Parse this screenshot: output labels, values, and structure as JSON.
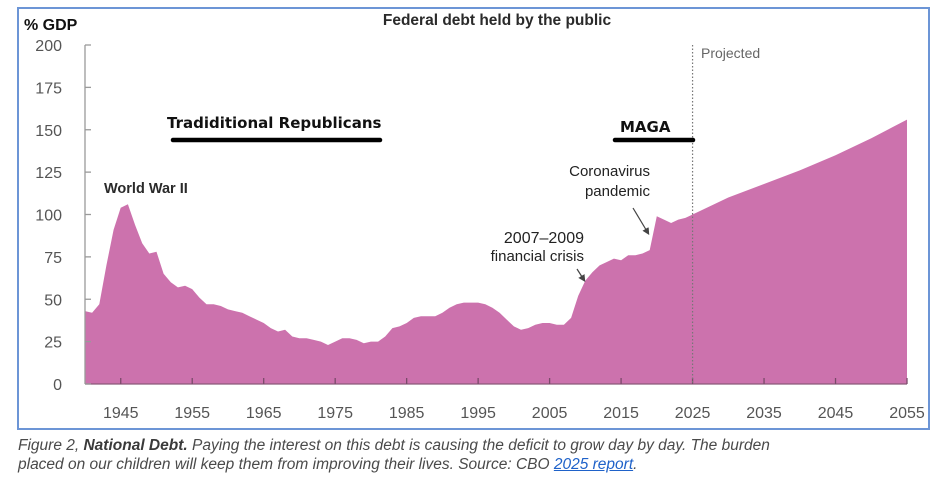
{
  "chart_data": {
    "type": "area",
    "title": "Federal debt held by the public",
    "ylabel": "% GDP",
    "xlabel": "",
    "ylim": [
      0,
      200
    ],
    "xlim": [
      1940,
      2055
    ],
    "grid": false,
    "fill_color": "#cc72ad",
    "y_ticks": [
      0,
      25,
      50,
      75,
      100,
      125,
      150,
      175,
      200
    ],
    "y_tick_labels": [
      "0",
      "25",
      "50",
      "75",
      "100",
      "125",
      "150",
      "175",
      "200"
    ],
    "x_ticks": [
      1945,
      1955,
      1965,
      1975,
      1985,
      1995,
      2005,
      2015,
      2025,
      2035,
      2045,
      2055
    ],
    "x_tick_labels": [
      "1945",
      "1955",
      "1965",
      "1975",
      "1985",
      "1995",
      "2005",
      "2015",
      "2025",
      "2035",
      "2045",
      "2055"
    ],
    "projected_start": 2025,
    "projected_label": "Projected",
    "series": [
      {
        "name": "Federal debt held by the public",
        "x": [
          1940,
          1941,
          1942,
          1943,
          1944,
          1945,
          1946,
          1947,
          1948,
          1949,
          1950,
          1951,
          1952,
          1953,
          1954,
          1955,
          1956,
          1957,
          1958,
          1959,
          1960,
          1961,
          1962,
          1963,
          1964,
          1965,
          1966,
          1967,
          1968,
          1969,
          1970,
          1971,
          1972,
          1973,
          1974,
          1975,
          1976,
          1977,
          1978,
          1979,
          1980,
          1981,
          1982,
          1983,
          1984,
          1985,
          1986,
          1987,
          1988,
          1989,
          1990,
          1991,
          1992,
          1993,
          1994,
          1995,
          1996,
          1997,
          1998,
          1999,
          2000,
          2001,
          2002,
          2003,
          2004,
          2005,
          2006,
          2007,
          2008,
          2009,
          2010,
          2011,
          2012,
          2013,
          2014,
          2015,
          2016,
          2017,
          2018,
          2019,
          2020,
          2021,
          2022,
          2023,
          2024,
          2025,
          2030,
          2035,
          2040,
          2045,
          2050,
          2055
        ],
        "values": [
          43,
          42,
          47,
          70,
          91,
          104,
          106,
          94,
          83,
          77,
          78,
          65,
          60,
          57,
          58,
          56,
          51,
          47,
          47,
          46,
          44,
          43,
          42,
          40,
          38,
          36,
          33,
          31,
          32,
          28,
          27,
          27,
          26,
          25,
          23,
          25,
          27,
          27,
          26,
          24,
          25,
          25,
          28,
          33,
          34,
          36,
          39,
          40,
          40,
          40,
          42,
          45,
          47,
          48,
          48,
          48,
          47,
          45,
          42,
          38,
          34,
          32,
          33,
          35,
          36,
          36,
          35,
          35,
          39,
          52,
          61,
          66,
          70,
          72,
          74,
          73,
          76,
          76,
          77,
          79,
          99,
          97,
          95,
          97,
          98,
          100,
          110,
          118,
          126,
          135,
          145,
          156
        ]
      }
    ],
    "annotations": [
      {
        "id": "ww2",
        "text": "World War II"
      },
      {
        "id": "crisis_line1",
        "text": "2007–2009"
      },
      {
        "id": "crisis_line2",
        "text": "financial crisis"
      },
      {
        "id": "covid_line1",
        "text": "Coronavirus"
      },
      {
        "id": "covid_line2",
        "text": "pandemic"
      },
      {
        "id": "trad",
        "text": "Tradiditional Republicans"
      },
      {
        "id": "maga",
        "text": "MAGA"
      }
    ]
  },
  "caption": {
    "figure_label": "Figure 2, ",
    "bold_title": "National Debt.",
    "text_line1": " Paying the interest on this debt is causing the deficit to grow day by day.  The burden",
    "text_line2": "placed on our children will keep them from improving their lives. Source: CBO ",
    "link_text": "2025 report",
    "end": "."
  }
}
